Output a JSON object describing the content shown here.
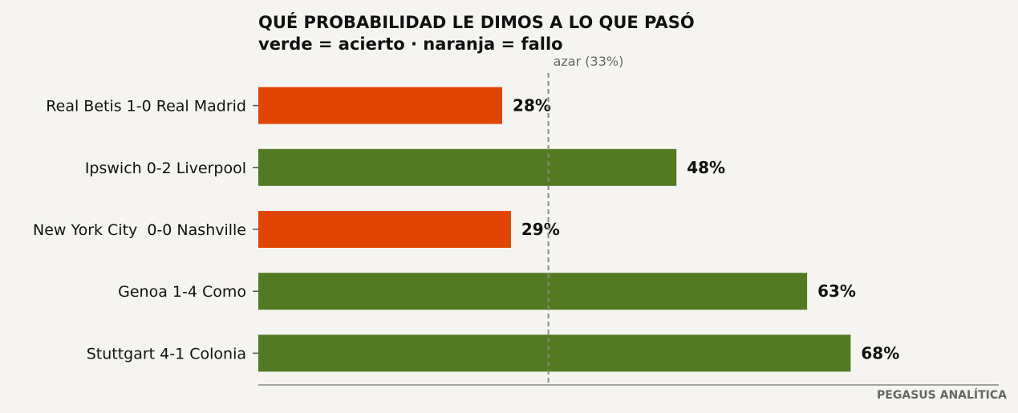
{
  "chart_data": {
    "type": "bar",
    "orientation": "horizontal",
    "title": "QUÉ PROBABILIDAD LE DIMOS A LO QUE PASÓ",
    "subtitle": "verde = acierto · naranja = fallo",
    "categories": [
      "Real Betis 1-0 Real Madrid",
      "Ipswich 0-2 Liverpool",
      "New York City  0-0 Nashville",
      "Genoa 1-4 Como",
      "Stuttgart 4-1 Colonia"
    ],
    "values": [
      28,
      48,
      29,
      63,
      68
    ],
    "value_labels": [
      "28%",
      "48%",
      "29%",
      "63%",
      "68%"
    ],
    "outcome": [
      "fallo",
      "acierto",
      "fallo",
      "acierto",
      "acierto"
    ],
    "xlim": [
      0,
      85
    ],
    "reference_line": {
      "value": 33.3,
      "label": "azar (33%)"
    },
    "grid": false,
    "colors": {
      "acierto": "#517a21",
      "fallo": "#e04602",
      "reference": "#8a8a8a",
      "axis": "#888888"
    }
  },
  "branding": {
    "text": "PEGASUS ANALÍTICA"
  }
}
